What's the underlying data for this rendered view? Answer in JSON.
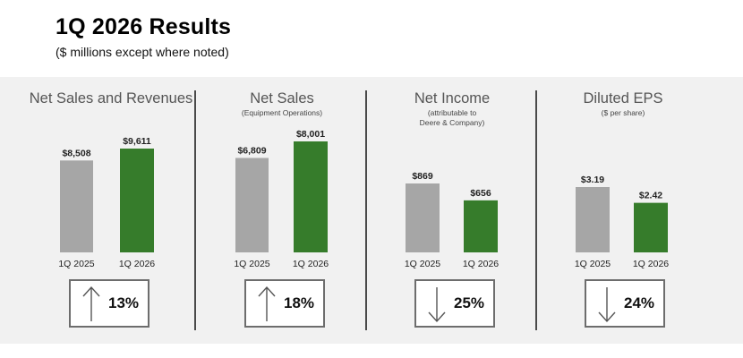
{
  "header": {
    "title": "1Q 2026 Results",
    "subtitle": "($ millions except where noted)"
  },
  "colors": {
    "prior": "#a6a6a6",
    "current": "#367c2b",
    "band": "#f1f1f1"
  },
  "chart_data": [
    {
      "type": "bar",
      "title": "Net Sales and Revenues",
      "subtitle": "",
      "categories": [
        "1Q 2025",
        "1Q 2026"
      ],
      "values": [
        8508,
        9611
      ],
      "value_labels": [
        "$8,508",
        "$9,611"
      ],
      "change": {
        "direction": "up",
        "label": "13%"
      }
    },
    {
      "type": "bar",
      "title": "Net Sales",
      "subtitle": "(Equipment Operations)",
      "categories": [
        "1Q 2025",
        "1Q 2026"
      ],
      "values": [
        6809,
        8001
      ],
      "value_labels": [
        "$6,809",
        "$8,001"
      ],
      "change": {
        "direction": "up",
        "label": "18%"
      }
    },
    {
      "type": "bar",
      "title": "Net Income",
      "subtitle": "(attributable to Deere & Company)",
      "subtitle_lines": [
        "(attributable to",
        "Deere & Company)"
      ],
      "categories": [
        "1Q 2025",
        "1Q 2026"
      ],
      "values": [
        869,
        656
      ],
      "value_labels": [
        "$869",
        "$656"
      ],
      "change": {
        "direction": "down",
        "label": "25%"
      }
    },
    {
      "type": "bar",
      "title": "Diluted EPS",
      "subtitle": "($ per share)",
      "categories": [
        "1Q 2025",
        "1Q 2026"
      ],
      "values": [
        3.19,
        2.42
      ],
      "value_labels": [
        "$3.19",
        "$2.42"
      ],
      "change": {
        "direction": "down",
        "label": "24%"
      }
    }
  ]
}
